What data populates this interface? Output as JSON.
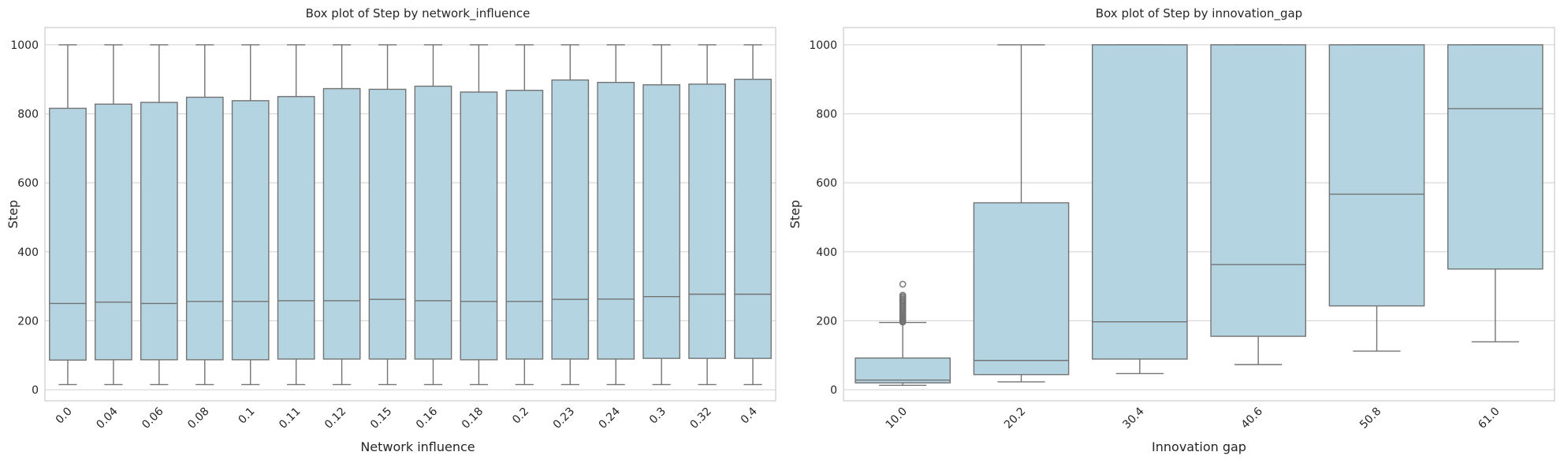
{
  "theme": {
    "box_fill": "#b3d4e0",
    "line_color": "#737373",
    "grid_color": "#d9d9d9",
    "frame_color": "#cccccc",
    "text_color": "#262626"
  },
  "chart_data": [
    {
      "type": "box",
      "title": "Box plot of Step by network_influence",
      "xlabel": "Network influence",
      "ylabel": "Step",
      "ylim": [
        -32,
        1050
      ],
      "yticks": [
        0,
        200,
        400,
        600,
        800,
        1000
      ],
      "grid": "horizontal",
      "categories": [
        "0.0",
        "0.04",
        "0.06",
        "0.08",
        "0.1",
        "0.11",
        "0.12",
        "0.15",
        "0.16",
        "0.18",
        "0.2",
        "0.23",
        "0.24",
        "0.3",
        "0.32",
        "0.4"
      ],
      "boxes": [
        {
          "whislo": 15,
          "q1": 86,
          "med": 250,
          "q3": 816,
          "whishi": 1000,
          "fliers": []
        },
        {
          "whislo": 15,
          "q1": 87,
          "med": 254,
          "q3": 828,
          "whishi": 1000,
          "fliers": []
        },
        {
          "whislo": 15,
          "q1": 87,
          "med": 250,
          "q3": 833,
          "whishi": 1000,
          "fliers": []
        },
        {
          "whislo": 15,
          "q1": 87,
          "med": 256,
          "q3": 848,
          "whishi": 1000,
          "fliers": []
        },
        {
          "whislo": 15,
          "q1": 87,
          "med": 256,
          "q3": 838,
          "whishi": 1000,
          "fliers": []
        },
        {
          "whislo": 15,
          "q1": 89,
          "med": 258,
          "q3": 850,
          "whishi": 1000,
          "fliers": []
        },
        {
          "whislo": 15,
          "q1": 89,
          "med": 258,
          "q3": 873,
          "whishi": 1000,
          "fliers": []
        },
        {
          "whislo": 15,
          "q1": 89,
          "med": 262,
          "q3": 871,
          "whishi": 1000,
          "fliers": []
        },
        {
          "whislo": 15,
          "q1": 89,
          "med": 258,
          "q3": 880,
          "whishi": 1000,
          "fliers": []
        },
        {
          "whislo": 15,
          "q1": 87,
          "med": 256,
          "q3": 863,
          "whishi": 1000,
          "fliers": []
        },
        {
          "whislo": 15,
          "q1": 89,
          "med": 256,
          "q3": 868,
          "whishi": 1000,
          "fliers": []
        },
        {
          "whislo": 15,
          "q1": 89,
          "med": 262,
          "q3": 898,
          "whishi": 1000,
          "fliers": []
        },
        {
          "whislo": 15,
          "q1": 89,
          "med": 263,
          "q3": 891,
          "whishi": 1000,
          "fliers": []
        },
        {
          "whislo": 15,
          "q1": 91,
          "med": 270,
          "q3": 884,
          "whishi": 1000,
          "fliers": []
        },
        {
          "whislo": 15,
          "q1": 91,
          "med": 277,
          "q3": 886,
          "whishi": 1000,
          "fliers": []
        },
        {
          "whislo": 15,
          "q1": 91,
          "med": 277,
          "q3": 900,
          "whishi": 1000,
          "fliers": []
        }
      ]
    },
    {
      "type": "box",
      "title": "Box plot of Step by innovation_gap",
      "xlabel": "Innovation gap",
      "ylabel": "Step",
      "ylim": [
        -32,
        1050
      ],
      "yticks": [
        0,
        200,
        400,
        600,
        800,
        1000
      ],
      "grid": "horizontal",
      "categories": [
        "10.0",
        "20.2",
        "30.4",
        "40.6",
        "50.8",
        "61.0"
      ],
      "boxes": [
        {
          "whislo": 13,
          "q1": 20,
          "med": 28,
          "q3": 92,
          "whishi": 195,
          "fliers": [
            196,
            198,
            200,
            203,
            206,
            209,
            212,
            215,
            218,
            222,
            226,
            230,
            234,
            238,
            242,
            246,
            250,
            254,
            258,
            262,
            266,
            270,
            274,
            306
          ]
        },
        {
          "whislo": 23,
          "q1": 44,
          "med": 85,
          "q3": 542,
          "whishi": 1000,
          "fliers": []
        },
        {
          "whislo": 47,
          "q1": 89,
          "med": 197,
          "q3": 1000,
          "whishi": 1000,
          "fliers": []
        },
        {
          "whislo": 73,
          "q1": 155,
          "med": 363,
          "q3": 1000,
          "whishi": 1000,
          "fliers": []
        },
        {
          "whislo": 112,
          "q1": 243,
          "med": 567,
          "q3": 1000,
          "whishi": 1000,
          "fliers": []
        },
        {
          "whislo": 139,
          "q1": 350,
          "med": 815,
          "q3": 1000,
          "whishi": 1000,
          "fliers": []
        }
      ]
    }
  ]
}
